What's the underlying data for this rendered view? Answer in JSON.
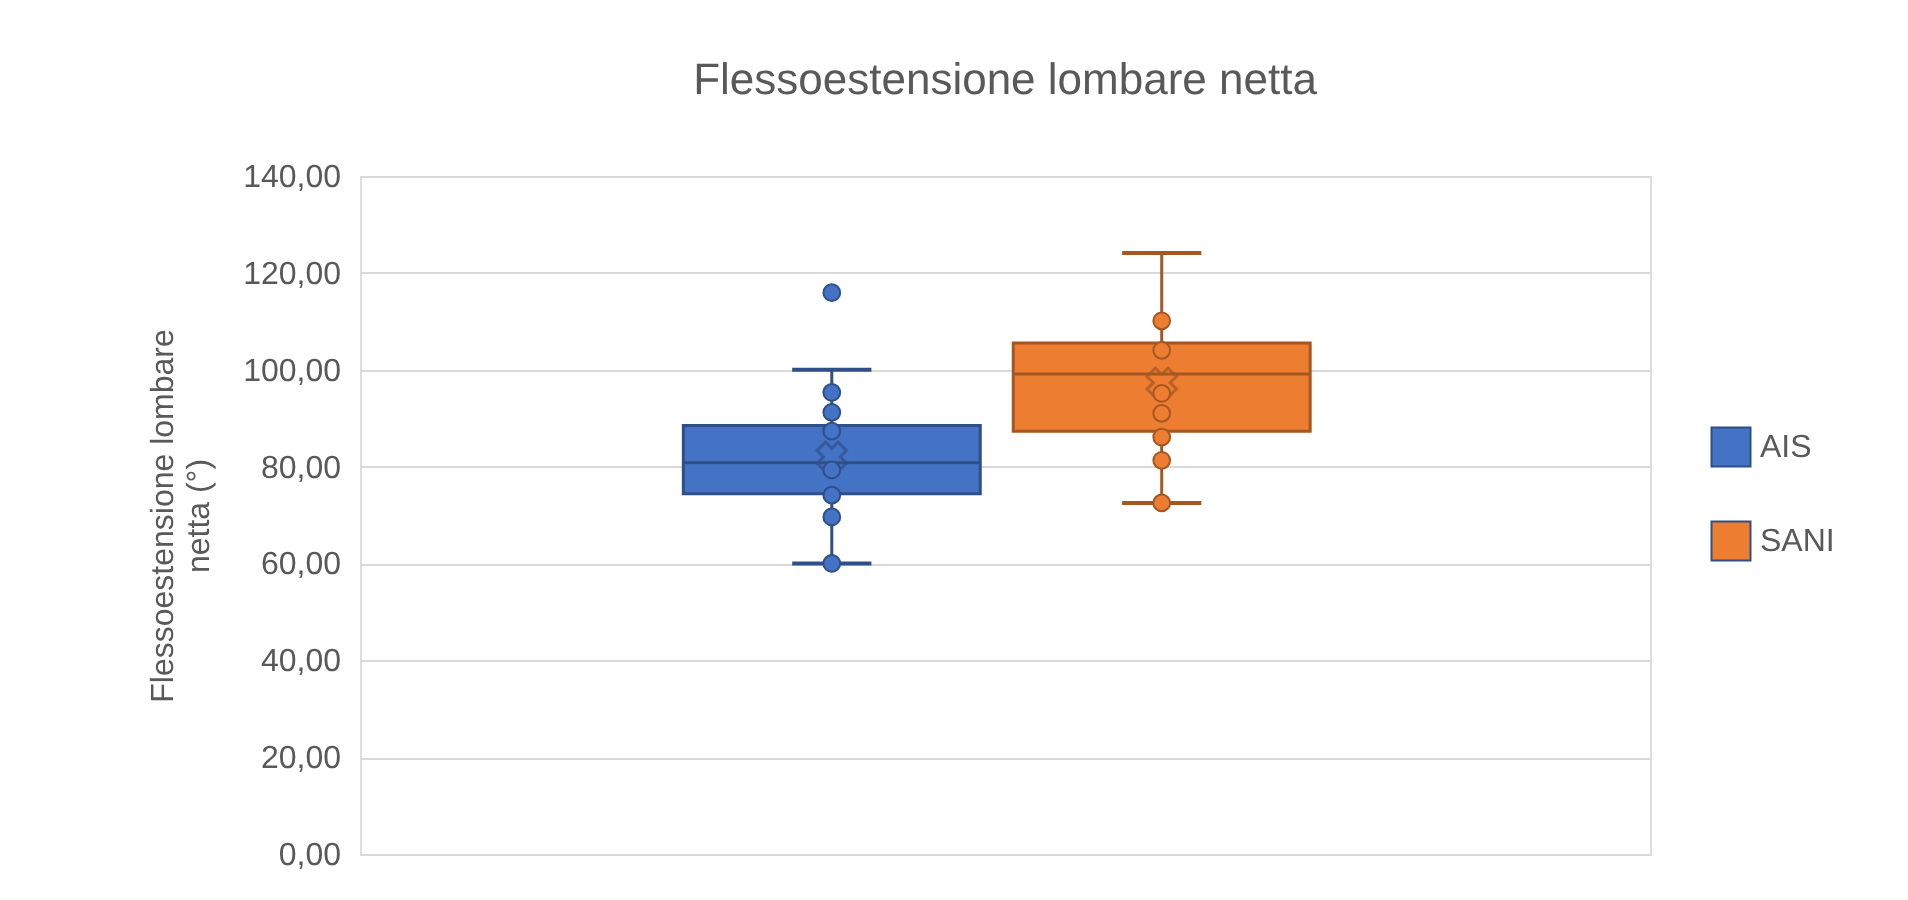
{
  "chart_data": {
    "type": "box",
    "title": "Flessoestensione lombare netta",
    "ylabel": "Flessoestensione lombare netta (°)",
    "categories": [
      null
    ],
    "ylim": [
      0,
      140
    ],
    "yticks": [
      {
        "value": 0,
        "label": "0,00"
      },
      {
        "value": 20,
        "label": "20,00"
      },
      {
        "value": 40,
        "label": "40,00"
      },
      {
        "value": 60,
        "label": "60,00"
      },
      {
        "value": 80,
        "label": "80,00"
      },
      {
        "value": 100,
        "label": "100,00"
      },
      {
        "value": 120,
        "label": "120,00"
      },
      {
        "value": 140,
        "label": "140,00"
      }
    ],
    "grid": "y",
    "legend": "right",
    "tick_labels": "y",
    "marker": "circle",
    "series": [
      {
        "name": "AIS",
        "color": "#4472c4",
        "boxes": [
          {
            "low": 60.0,
            "q1": 74.4,
            "median": 80.8,
            "q3": 88.5,
            "high": 100.0,
            "mean": 82.0,
            "outliers": [
              115.9
            ]
          }
        ]
      },
      {
        "name": "SANI",
        "color": "#ed7d31",
        "boxes": [
          {
            "low": 72.5,
            "q1": 87.3,
            "median": 99.1,
            "q3": 105.5,
            "high": 124.1,
            "mean": 97.3
          }
        ]
      },
      {
        "type": "scatter",
        "color": "#4472c4",
        "x": [
          null,
          null,
          null,
          null,
          null,
          null,
          null
        ],
        "values": [
          95.3,
          91.2,
          87.3,
          79.3,
          74.1,
          69.6,
          60.0
        ]
      },
      {
        "type": "scatter",
        "color": "#ed7d31",
        "x": [
          null,
          null,
          null,
          null,
          null,
          null,
          null
        ],
        "values": [
          110.1,
          104.0,
          95.1,
          91.0,
          86.1,
          81.3,
          72.5
        ]
      }
    ]
  }
}
